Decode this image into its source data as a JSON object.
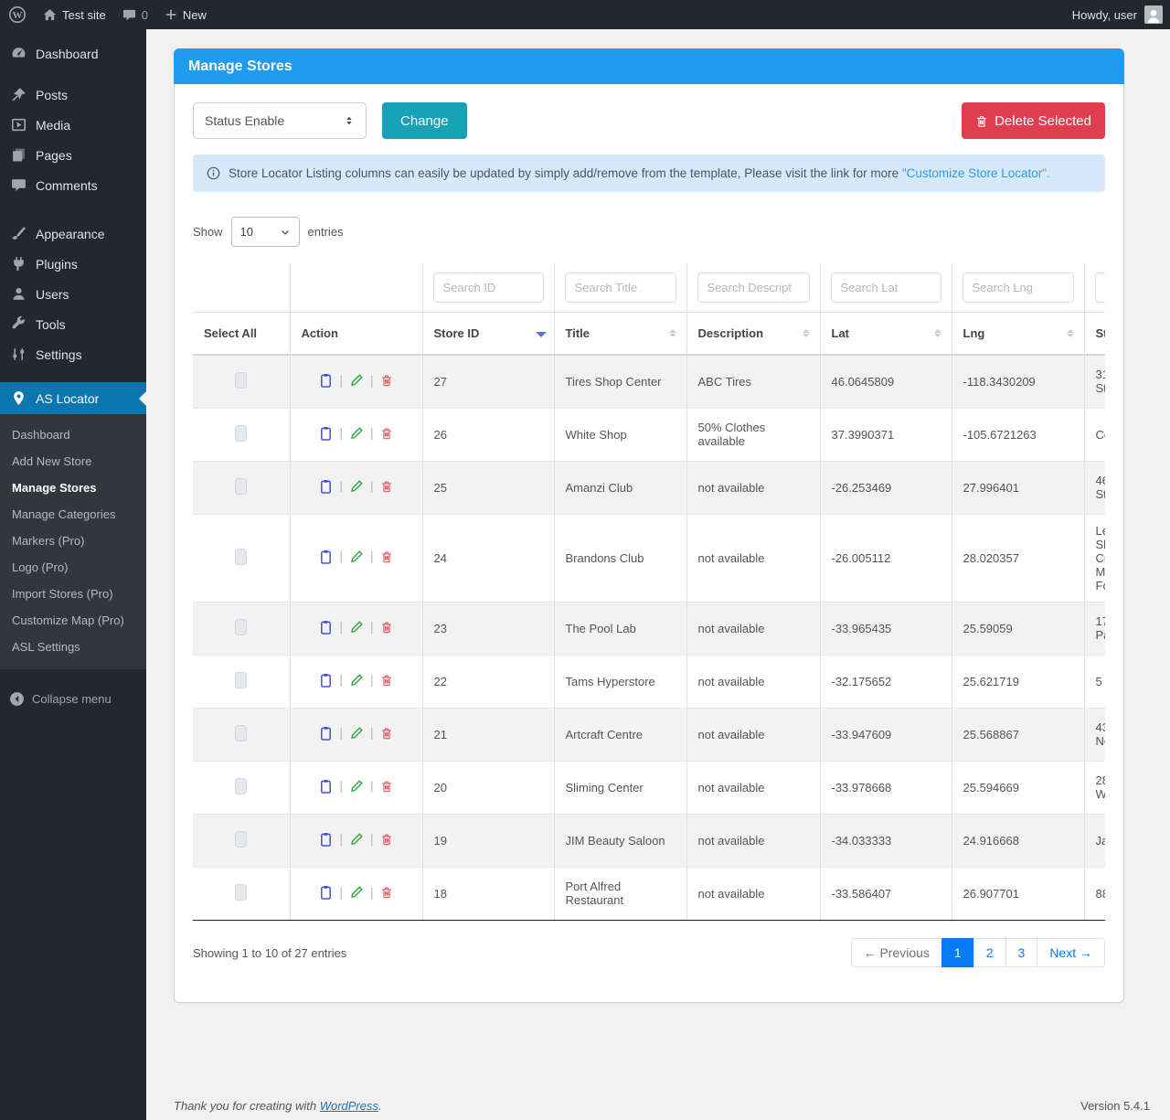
{
  "admin_bar": {
    "site_name": "Test site",
    "comment_count": "0",
    "new_label": "New",
    "howdy": "Howdy, user"
  },
  "sidebar": {
    "items": [
      {
        "label": "Dashboard",
        "icon": "dashboard"
      },
      {
        "label": "Posts",
        "icon": "pushpin"
      },
      {
        "label": "Media",
        "icon": "media"
      },
      {
        "label": "Pages",
        "icon": "pages"
      },
      {
        "label": "Comments",
        "icon": "comment"
      },
      {
        "label": "Appearance",
        "icon": "appearance"
      },
      {
        "label": "Plugins",
        "icon": "plugin"
      },
      {
        "label": "Users",
        "icon": "user"
      },
      {
        "label": "Tools",
        "icon": "tools"
      },
      {
        "label": "Settings",
        "icon": "settings"
      }
    ],
    "as_locator": {
      "label": "AS Locator",
      "submenu": [
        {
          "label": "Dashboard",
          "active": false
        },
        {
          "label": "Add New Store",
          "active": false
        },
        {
          "label": "Manage Stores",
          "active": true
        },
        {
          "label": "Manage Categories",
          "active": false
        },
        {
          "label": "Markers (Pro)",
          "active": false
        },
        {
          "label": "Logo (Pro)",
          "active": false
        },
        {
          "label": "Import Stores (Pro)",
          "active": false
        },
        {
          "label": "Customize Map (Pro)",
          "active": false
        },
        {
          "label": "ASL Settings",
          "active": false
        }
      ]
    },
    "collapse_label": "Collapse menu"
  },
  "page": {
    "title": "Manage Stores",
    "status_select_value": "Status Enable",
    "change_button": "Change",
    "delete_button": "Delete Selected",
    "notice_text": "Store Locator Listing columns can easily be updated by simply add/remove from the template, Please visit the link for more",
    "notice_link": "\"Customize Store Locator\".",
    "show_label": "Show",
    "entries_label": "entries",
    "page_length": "10"
  },
  "table": {
    "columns": [
      {
        "key": "select",
        "label": "Select All",
        "search_placeholder": null,
        "sort": null
      },
      {
        "key": "action",
        "label": "Action",
        "search_placeholder": null,
        "sort": null
      },
      {
        "key": "id",
        "label": "Store ID",
        "search_placeholder": "Search ID",
        "sort": "desc"
      },
      {
        "key": "title",
        "label": "Title",
        "search_placeholder": "Search Title",
        "sort": "both"
      },
      {
        "key": "description",
        "label": "Description",
        "search_placeholder": "Search Descript",
        "sort": "both"
      },
      {
        "key": "lat",
        "label": "Lat",
        "search_placeholder": "Search Lat",
        "sort": "both"
      },
      {
        "key": "lng",
        "label": "Lng",
        "search_placeholder": "Search Lng",
        "sort": "both"
      },
      {
        "key": "street",
        "label": "St",
        "search_placeholder": "",
        "sort": null
      }
    ],
    "rows": [
      {
        "id": "27",
        "title": "Tires Shop Center",
        "description": "ABC Tires",
        "lat": "46.0645809",
        "lng": "-118.3430209",
        "street": "31\nSt"
      },
      {
        "id": "26",
        "title": "White Shop",
        "description": "50% Clothes available",
        "lat": "37.3990371",
        "lng": "-105.6721263",
        "street": "Ce"
      },
      {
        "id": "25",
        "title": "Amanzi Club",
        "description": "not available",
        "lat": "-26.253469",
        "lng": "27.996401",
        "street": "46\nSt"
      },
      {
        "id": "24",
        "title": "Brandons Club",
        "description": "not available",
        "lat": "-26.005112",
        "lng": "28.020357",
        "street": "Le\nSh\nCr\nMu\nFo"
      },
      {
        "id": "23",
        "title": "The Pool Lab",
        "description": "not available",
        "lat": "-33.965435",
        "lng": "25.59059",
        "street": "17\nPa"
      },
      {
        "id": "22",
        "title": "Tams Hyperstore",
        "description": "not available",
        "lat": "-32.175652",
        "lng": "25.621719",
        "street": "5"
      },
      {
        "id": "21",
        "title": "Artcraft Centre",
        "description": "not available",
        "lat": "-33.947609",
        "lng": "25.568867",
        "street": "43\nNe"
      },
      {
        "id": "20",
        "title": "Sliming Center",
        "description": "not available",
        "lat": "-33.978668",
        "lng": "25.594669",
        "street": "28\nW"
      },
      {
        "id": "19",
        "title": "JIM Beauty Saloon",
        "description": "not available",
        "lat": "-34.033333",
        "lng": "24.916668",
        "street": "Ja"
      },
      {
        "id": "18",
        "title": "Port Alfred Restaurant",
        "description": "not available",
        "lat": "-33.586407",
        "lng": "26.907701",
        "street": "88"
      }
    ]
  },
  "pagination": {
    "showing_text": "Showing 1 to 10 of 27 entries",
    "previous_label": "← Previous",
    "pages": [
      {
        "label": "1",
        "active": true
      },
      {
        "label": "2",
        "active": false
      },
      {
        "label": "3",
        "active": false
      }
    ],
    "next_label": "Next →"
  },
  "footer": {
    "thanks_text": "Thank you for creating with",
    "wordpress_link": "WordPress",
    "period": ".",
    "version": "Version 5.4.1"
  },
  "colors": {
    "card_header_blue": "#1f9bf0",
    "menu_active_blue": "#0b76b0",
    "change_teal": "#18a2b8",
    "delete_red": "#df3e4e",
    "pagination_blue": "#067bf4",
    "alert_bg": "#d6e9fb"
  }
}
